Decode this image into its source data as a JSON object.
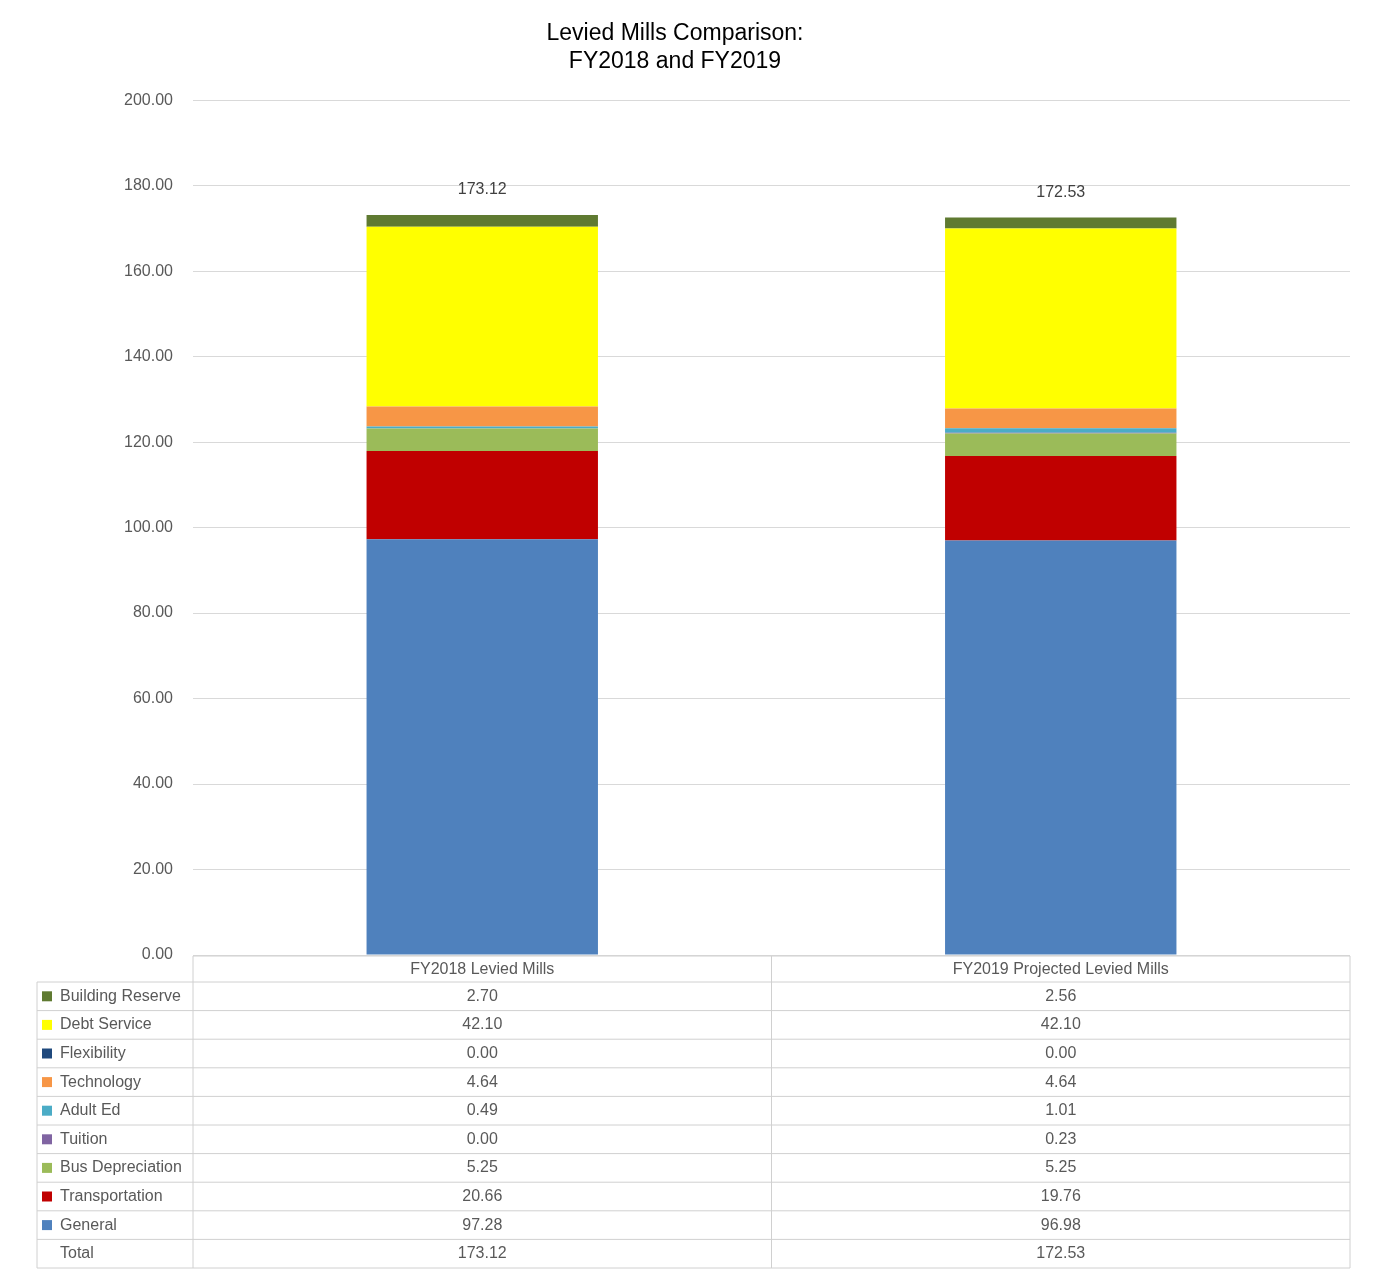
{
  "chart_data": {
    "type": "bar",
    "title": "Levied Mills Comparison:\nFY2018 and FY2019",
    "stacked": true,
    "categories": [
      "FY2018 Levied Mills",
      "FY2019 Projected Levied Mills"
    ],
    "series": [
      {
        "name": "General",
        "color": "#4f81bd",
        "values": [
          97.28,
          96.98
        ],
        "value_labels": [
          "97.28",
          "96.98"
        ]
      },
      {
        "name": "Transportation",
        "color": "#c00000",
        "values": [
          20.66,
          19.76
        ],
        "value_labels": [
          "20.66",
          "19.76"
        ]
      },
      {
        "name": "Bus Depreciation",
        "color": "#9bbb59",
        "values": [
          5.25,
          5.25
        ],
        "value_labels": [
          "5.25",
          "5.25"
        ]
      },
      {
        "name": "Tuition",
        "color": "#8064a2",
        "values": [
          0,
          0.23
        ],
        "value_labels": [
          "0.00",
          "0.23"
        ]
      },
      {
        "name": "Adult Ed",
        "color": "#4bacc6",
        "values": [
          0.49,
          1.01
        ],
        "value_labels": [
          "0.49",
          "1.01"
        ]
      },
      {
        "name": "Technology",
        "color": "#f79646",
        "values": [
          4.64,
          4.64
        ],
        "value_labels": [
          "4.64",
          "4.64"
        ]
      },
      {
        "name": "Flexibility",
        "color": "#1f497d",
        "values": [
          0,
          0
        ],
        "value_labels": [
          "0.00",
          "0.00"
        ]
      },
      {
        "name": "Debt Service",
        "color": "#ffff00",
        "values": [
          42.1,
          42.1
        ],
        "value_labels": [
          "42.10",
          "42.10"
        ]
      },
      {
        "name": "Building Reserve",
        "color": "#5f7a31",
        "values": [
          2.7,
          2.56
        ],
        "value_labels": [
          "2.70",
          "2.56"
        ]
      }
    ],
    "totals": [
      "173.12",
      "172.53"
    ],
    "annotations": [
      "Total"
    ],
    "ylim": [
      0,
      200
    ],
    "yticks": [
      {
        "value": 0,
        "label": "0.00"
      },
      {
        "value": 20,
        "label": "20.00"
      },
      {
        "value": 40,
        "label": "40.00"
      },
      {
        "value": 60,
        "label": "60.00"
      },
      {
        "value": 80,
        "label": "80.00"
      },
      {
        "value": 100,
        "label": "100.00"
      },
      {
        "value": 120,
        "label": "120.00"
      },
      {
        "value": 140,
        "label": "140.00"
      },
      {
        "value": 160,
        "label": "160.00"
      },
      {
        "value": 180,
        "label": "180.00"
      },
      {
        "value": 200,
        "label": "200.00"
      }
    ],
    "grid": "y",
    "legend": "bottom"
  }
}
